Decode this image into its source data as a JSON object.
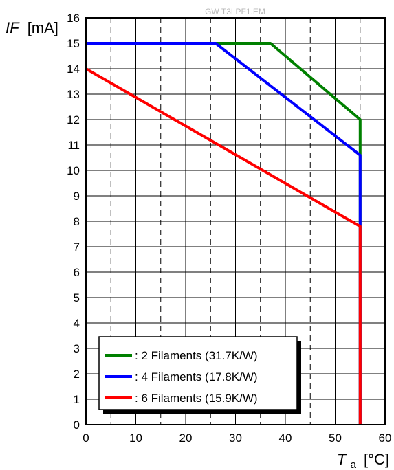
{
  "watermark": "GW T3LPF1.EM",
  "chart_data": {
    "type": "line",
    "ylabel_italic": "IF",
    "ylabel_unit": "[mA]",
    "xlabel_italic": "T",
    "xlabel_sub": "a",
    "xlabel_unit": "[°C]",
    "xlim": [
      0,
      60
    ],
    "ylim": [
      0,
      16
    ],
    "xticks": [
      "0",
      "10",
      "20",
      "30",
      "40",
      "50",
      "60"
    ],
    "yticks": [
      "0",
      "1",
      "2",
      "3",
      "4",
      "5",
      "6",
      "7",
      "8",
      "9",
      "10",
      "11",
      "12",
      "13",
      "14",
      "15",
      "16"
    ],
    "grid": true,
    "legend_position": "bottom-left",
    "series": [
      {
        "name": ": 2 Filaments (31.7K/W)",
        "color": "#008000",
        "x": [
          0,
          37,
          55,
          55
        ],
        "y": [
          15,
          15,
          12,
          0
        ]
      },
      {
        "name": ": 4 Filaments (17.8K/W)",
        "color": "#0000ff",
        "x": [
          0,
          26,
          55,
          55
        ],
        "y": [
          15,
          15,
          10.6,
          0
        ]
      },
      {
        "name": ": 6 Filaments (15.9K/W)",
        "color": "#ff0000",
        "x": [
          0,
          55,
          55
        ],
        "y": [
          14,
          7.8,
          0
        ]
      }
    ]
  }
}
